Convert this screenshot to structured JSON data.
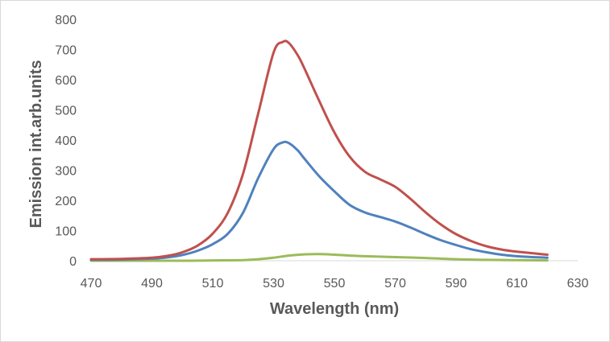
{
  "chart_data": {
    "type": "line",
    "title": "",
    "xlabel": "Wavelength (nm)",
    "ylabel": "Emission int.arb.units",
    "xlim": [
      470,
      630
    ],
    "ylim": [
      0,
      800
    ],
    "x_ticks": [
      "470",
      "490",
      "510",
      "530",
      "550",
      "570",
      "590",
      "610",
      "630"
    ],
    "y_ticks": [
      "0",
      "100",
      "200",
      "300",
      "400",
      "500",
      "600",
      "700",
      "800"
    ],
    "grid": false,
    "legend": "none",
    "series": [
      {
        "name": "red",
        "color": "#c0504d",
        "x": [
          470,
          480,
          490,
          495,
          500,
          505,
          510,
          515,
          520,
          525,
          530,
          533,
          535,
          538,
          540,
          545,
          550,
          555,
          560,
          565,
          570,
          575,
          580,
          585,
          590,
          595,
          600,
          605,
          610,
          615,
          620
        ],
        "y": [
          5,
          6,
          10,
          16,
          28,
          50,
          90,
          160,
          290,
          490,
          690,
          725,
          722,
          680,
          640,
          530,
          425,
          345,
          295,
          270,
          245,
          205,
          160,
          120,
          88,
          65,
          48,
          37,
          30,
          25,
          20
        ]
      },
      {
        "name": "blue",
        "color": "#4f81bd",
        "x": [
          470,
          480,
          490,
          495,
          500,
          505,
          510,
          515,
          520,
          525,
          530,
          533,
          535,
          538,
          540,
          545,
          550,
          555,
          560,
          565,
          570,
          575,
          580,
          585,
          590,
          595,
          600,
          605,
          610,
          615,
          620
        ],
        "y": [
          3,
          4,
          7,
          11,
          19,
          33,
          55,
          90,
          160,
          275,
          370,
          392,
          390,
          365,
          340,
          280,
          230,
          185,
          160,
          145,
          130,
          110,
          88,
          68,
          52,
          38,
          28,
          20,
          15,
          12,
          10
        ]
      },
      {
        "name": "green",
        "color": "#9bbb59",
        "x": [
          470,
          500,
          510,
          520,
          525,
          530,
          535,
          540,
          545,
          550,
          555,
          560,
          570,
          580,
          590,
          600,
          610,
          620
        ],
        "y": [
          0,
          0,
          1,
          2,
          5,
          10,
          17,
          21,
          22,
          20,
          17,
          15,
          12,
          9,
          5,
          3,
          2,
          1
        ]
      }
    ]
  }
}
